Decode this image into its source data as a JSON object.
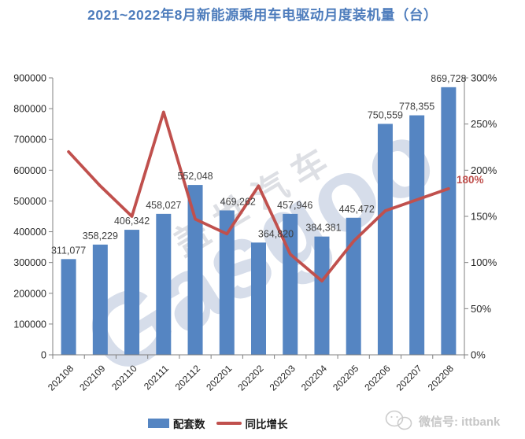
{
  "title": "2021~2022年8月新能源乘用车电驱动月度装机量（台）",
  "chart_data": {
    "type": "bar",
    "subtype": "bar+line combo, dual axis",
    "title": "2021~2022年8月新能源乘用车电驱动月度装机量（台）",
    "categories": [
      "202108",
      "202109",
      "202110",
      "202111",
      "202112",
      "202201",
      "202202",
      "202203",
      "202204",
      "202205",
      "202206",
      "202207",
      "202208"
    ],
    "series": [
      {
        "name": "配套数",
        "type": "bar",
        "axis": "left",
        "color": "#5585C2",
        "values": [
          311077,
          358229,
          406342,
          458027,
          552048,
          469262,
          364820,
          457946,
          384381,
          445472,
          750559,
          778355,
          869728
        ],
        "labels": [
          "311,077",
          "358,229",
          "406,342",
          "458,027",
          "552,048",
          "469,262",
          "364,820",
          "457,946",
          "384,381",
          "445,472",
          "750,559",
          "778,355",
          "869,728"
        ]
      },
      {
        "name": "同比增长",
        "type": "line",
        "axis": "right",
        "color": "#C0504D",
        "values_percent": [
          220,
          183,
          150,
          263,
          147,
          131,
          183,
          109,
          80,
          123,
          156,
          168,
          180
        ]
      }
    ],
    "left_axis": {
      "min": 0,
      "max": 900000,
      "step": 100000,
      "tick_labels": [
        "0",
        "100000",
        "200000",
        "300000",
        "400000",
        "500000",
        "600000",
        "700000",
        "800000",
        "900000"
      ]
    },
    "right_axis": {
      "min": 0,
      "max": 300,
      "step": 50,
      "tick_labels": [
        "0%",
        "50%",
        "100%",
        "150%",
        "200%",
        "250%",
        "300%"
      ]
    },
    "annotation": {
      "text": "180%",
      "color": "#C0504D"
    },
    "grid": false,
    "legend_position": "bottom"
  },
  "legend": {
    "items": [
      {
        "label": "配套数",
        "type": "bar",
        "color": "#5585C2"
      },
      {
        "label": "同比增长",
        "type": "line",
        "color": "#C0504D"
      }
    ]
  },
  "watermark": {
    "logo": "Gasgoo",
    "logo_cn": "盖世汽车",
    "wechat": "微信号: ittbank"
  },
  "colors": {
    "title": "#4d7cbc",
    "bar": "#5585C2",
    "line": "#C0504D",
    "axis": "#808080",
    "tick_text": "#262626",
    "bar_label_text": "#3f3f3f",
    "watermark_logo": "rgba(158,174,206,0.42)",
    "watermark_cn": "rgba(170,176,188,0.40)",
    "wechat_gray": "#c6c6c6"
  }
}
